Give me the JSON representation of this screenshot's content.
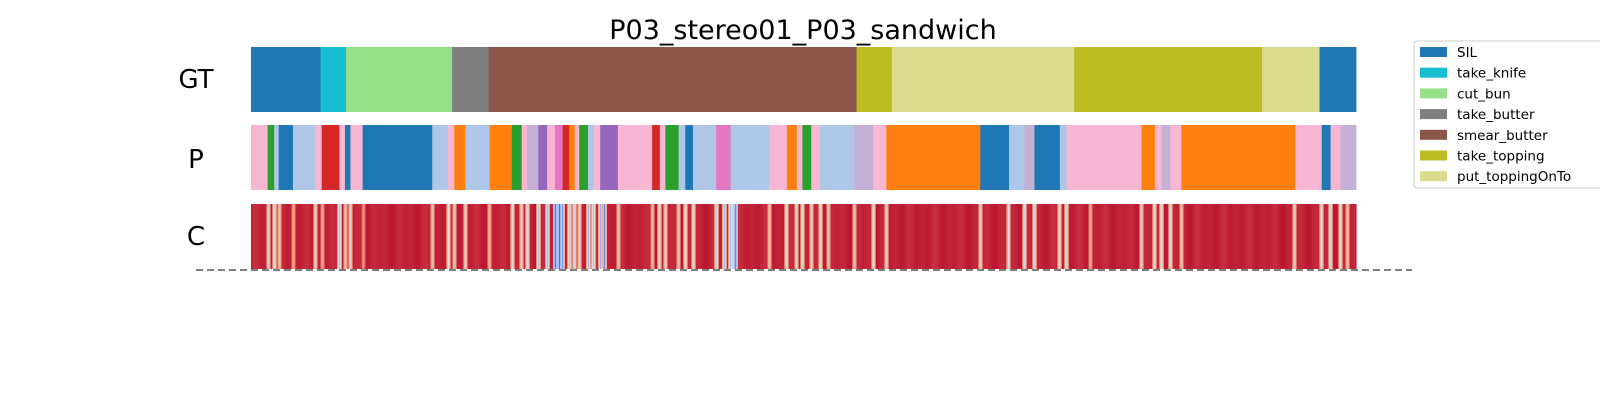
{
  "chart_data": {
    "type": "heatmap",
    "title": "P03_stereo01_P03_sandwich",
    "rows": [
      "GT",
      "P",
      "C"
    ],
    "x_range": [
      0,
      1
    ],
    "legend": {
      "placement": "right, clipped at top",
      "entries": [
        {
          "label": "SIL",
          "color": "#1f77b4"
        },
        {
          "label": "take_knife",
          "color": "#17becf"
        },
        {
          "label": "cut_bun",
          "color": "#98df8a"
        },
        {
          "label": "take_butter",
          "color": "#7f7f7f"
        },
        {
          "label": "smear_butter",
          "color": "#8c564b"
        },
        {
          "label": "take_topping",
          "color": "#bcbd22"
        },
        {
          "label": "put_toppingOnTo",
          "color": "#dbdb8d"
        }
      ]
    },
    "gt_segments": [
      {
        "start": 0.0,
        "end": 0.063,
        "label": "SIL",
        "color": "#1f77b4"
      },
      {
        "start": 0.063,
        "end": 0.086,
        "label": "take_knife",
        "color": "#17becf"
      },
      {
        "start": 0.086,
        "end": 0.182,
        "label": "cut_bun",
        "color": "#98df8a"
      },
      {
        "start": 0.182,
        "end": 0.215,
        "label": "take_butter",
        "color": "#7f7f7f"
      },
      {
        "start": 0.215,
        "end": 0.548,
        "label": "smear_butter",
        "color": "#8c564b"
      },
      {
        "start": 0.548,
        "end": 0.58,
        "label": "take_topping",
        "color": "#bcbd22"
      },
      {
        "start": 0.58,
        "end": 0.745,
        "label": "put_toppingOnTo",
        "color": "#dbdb8d"
      },
      {
        "start": 0.745,
        "end": 0.915,
        "label": "take_topping",
        "color": "#bcbd22"
      },
      {
        "start": 0.915,
        "end": 0.967,
        "label": "put_toppingOnTo",
        "color": "#dbdb8d"
      },
      {
        "start": 0.967,
        "end": 1.0,
        "label": "SIL",
        "color": "#1f77b4"
      }
    ],
    "pred_segments": [
      {
        "start": 0.0,
        "end": 0.015,
        "color": "#f7b6d2"
      },
      {
        "start": 0.015,
        "end": 0.021,
        "color": "#2ca02c"
      },
      {
        "start": 0.021,
        "end": 0.025,
        "color": "#aec7e8"
      },
      {
        "start": 0.025,
        "end": 0.038,
        "color": "#1f77b4"
      },
      {
        "start": 0.038,
        "end": 0.058,
        "color": "#aec7e8"
      },
      {
        "start": 0.058,
        "end": 0.064,
        "color": "#f7b6d2"
      },
      {
        "start": 0.064,
        "end": 0.08,
        "color": "#d62728"
      },
      {
        "start": 0.08,
        "end": 0.085,
        "color": "#f7b6d2"
      },
      {
        "start": 0.085,
        "end": 0.09,
        "color": "#1f77b4"
      },
      {
        "start": 0.09,
        "end": 0.101,
        "color": "#f7b6d2"
      },
      {
        "start": 0.101,
        "end": 0.164,
        "color": "#1f77b4"
      },
      {
        "start": 0.164,
        "end": 0.178,
        "color": "#aec7e8"
      },
      {
        "start": 0.178,
        "end": 0.184,
        "color": "#f7b6d2"
      },
      {
        "start": 0.184,
        "end": 0.194,
        "color": "#ff7f0e"
      },
      {
        "start": 0.194,
        "end": 0.216,
        "color": "#aec7e8"
      },
      {
        "start": 0.216,
        "end": 0.236,
        "color": "#ff7f0e"
      },
      {
        "start": 0.236,
        "end": 0.245,
        "color": "#2ca02c"
      },
      {
        "start": 0.245,
        "end": 0.25,
        "color": "#f7b6d2"
      },
      {
        "start": 0.25,
        "end": 0.26,
        "color": "#c5b0d5"
      },
      {
        "start": 0.26,
        "end": 0.268,
        "color": "#9467bd"
      },
      {
        "start": 0.268,
        "end": 0.275,
        "color": "#f7b6d2"
      },
      {
        "start": 0.275,
        "end": 0.282,
        "color": "#e377c2"
      },
      {
        "start": 0.282,
        "end": 0.288,
        "color": "#d62728"
      },
      {
        "start": 0.288,
        "end": 0.293,
        "color": "#ff7f0e"
      },
      {
        "start": 0.293,
        "end": 0.297,
        "color": "#f7b6d2"
      },
      {
        "start": 0.297,
        "end": 0.305,
        "color": "#2ca02c"
      },
      {
        "start": 0.305,
        "end": 0.31,
        "color": "#aec7e8"
      },
      {
        "start": 0.31,
        "end": 0.316,
        "color": "#f7b6d2"
      },
      {
        "start": 0.316,
        "end": 0.332,
        "color": "#9467bd"
      },
      {
        "start": 0.332,
        "end": 0.363,
        "color": "#f7b6d2"
      },
      {
        "start": 0.363,
        "end": 0.37,
        "color": "#d62728"
      },
      {
        "start": 0.37,
        "end": 0.375,
        "color": "#f7b6d2"
      },
      {
        "start": 0.375,
        "end": 0.387,
        "color": "#2ca02c"
      },
      {
        "start": 0.387,
        "end": 0.393,
        "color": "#aec7e8"
      },
      {
        "start": 0.393,
        "end": 0.4,
        "color": "#1f77b4"
      },
      {
        "start": 0.4,
        "end": 0.421,
        "color": "#aec7e8"
      },
      {
        "start": 0.421,
        "end": 0.434,
        "color": "#e377c2"
      },
      {
        "start": 0.434,
        "end": 0.469,
        "color": "#aec7e8"
      },
      {
        "start": 0.469,
        "end": 0.485,
        "color": "#f7b6d2"
      },
      {
        "start": 0.485,
        "end": 0.494,
        "color": "#ff7f0e"
      },
      {
        "start": 0.494,
        "end": 0.499,
        "color": "#f7b6d2"
      },
      {
        "start": 0.499,
        "end": 0.507,
        "color": "#2ca02c"
      },
      {
        "start": 0.507,
        "end": 0.515,
        "color": "#f7b6d2"
      },
      {
        "start": 0.515,
        "end": 0.523,
        "color": "#aec7e8"
      },
      {
        "start": 0.523,
        "end": 0.546,
        "color": "#aec7e8"
      },
      {
        "start": 0.546,
        "end": 0.563,
        "color": "#c5b0d5"
      },
      {
        "start": 0.563,
        "end": 0.575,
        "color": "#f7b6d2"
      },
      {
        "start": 0.575,
        "end": 0.66,
        "color": "#ff7f0e"
      },
      {
        "start": 0.66,
        "end": 0.686,
        "color": "#1f77b4"
      },
      {
        "start": 0.686,
        "end": 0.7,
        "color": "#aec7e8"
      },
      {
        "start": 0.7,
        "end": 0.709,
        "color": "#c5b0d5"
      },
      {
        "start": 0.709,
        "end": 0.732,
        "color": "#1f77b4"
      },
      {
        "start": 0.732,
        "end": 0.738,
        "color": "#aec7e8"
      },
      {
        "start": 0.738,
        "end": 0.806,
        "color": "#f7b6d2"
      },
      {
        "start": 0.806,
        "end": 0.818,
        "color": "#ff7f0e"
      },
      {
        "start": 0.818,
        "end": 0.824,
        "color": "#f7b6d2"
      },
      {
        "start": 0.824,
        "end": 0.832,
        "color": "#c5b0d5"
      },
      {
        "start": 0.832,
        "end": 0.842,
        "color": "#f7b6d2"
      },
      {
        "start": 0.842,
        "end": 0.945,
        "color": "#ff7f0e"
      },
      {
        "start": 0.945,
        "end": 0.969,
        "color": "#f7b6d2"
      },
      {
        "start": 0.969,
        "end": 0.977,
        "color": "#1f77b4"
      },
      {
        "start": 0.977,
        "end": 0.986,
        "color": "#f7b6d2"
      },
      {
        "start": 0.986,
        "end": 1.0,
        "color": "#c5b0d5"
      }
    ],
    "confidence": {
      "colormap": "coolwarm",
      "base": 0.97,
      "dips": [
        {
          "x": 0.015,
          "v": 0.55
        },
        {
          "x": 0.021,
          "v": 0.45
        },
        {
          "x": 0.025,
          "v": 0.6
        },
        {
          "x": 0.038,
          "v": 0.7
        },
        {
          "x": 0.058,
          "v": 0.55
        },
        {
          "x": 0.064,
          "v": 0.7
        },
        {
          "x": 0.08,
          "v": 0.35
        },
        {
          "x": 0.085,
          "v": 0.6
        },
        {
          "x": 0.09,
          "v": 0.55
        },
        {
          "x": 0.101,
          "v": 0.75
        },
        {
          "x": 0.164,
          "v": 0.6
        },
        {
          "x": 0.178,
          "v": 0.5
        },
        {
          "x": 0.184,
          "v": 0.6
        },
        {
          "x": 0.194,
          "v": 0.55
        },
        {
          "x": 0.216,
          "v": 0.65
        },
        {
          "x": 0.236,
          "v": 0.5
        },
        {
          "x": 0.245,
          "v": 0.55
        },
        {
          "x": 0.25,
          "v": 0.45
        },
        {
          "x": 0.26,
          "v": 0.4
        },
        {
          "x": 0.268,
          "v": 0.3
        },
        {
          "x": 0.275,
          "v": 0.1
        },
        {
          "x": 0.279,
          "v": 0.08
        },
        {
          "x": 0.282,
          "v": 0.2
        },
        {
          "x": 0.288,
          "v": 0.4
        },
        {
          "x": 0.293,
          "v": 0.45
        },
        {
          "x": 0.297,
          "v": 0.55
        },
        {
          "x": 0.305,
          "v": 0.3
        },
        {
          "x": 0.31,
          "v": 0.35
        },
        {
          "x": 0.316,
          "v": 0.25
        },
        {
          "x": 0.32,
          "v": 0.15
        },
        {
          "x": 0.332,
          "v": 0.6
        },
        {
          "x": 0.363,
          "v": 0.65
        },
        {
          "x": 0.37,
          "v": 0.5
        },
        {
          "x": 0.375,
          "v": 0.55
        },
        {
          "x": 0.387,
          "v": 0.6
        },
        {
          "x": 0.393,
          "v": 0.5
        },
        {
          "x": 0.4,
          "v": 0.5
        },
        {
          "x": 0.421,
          "v": 0.4
        },
        {
          "x": 0.428,
          "v": 0.3
        },
        {
          "x": 0.434,
          "v": 0.35
        },
        {
          "x": 0.436,
          "v": 0.45
        },
        {
          "x": 0.438,
          "v": 0.15
        },
        {
          "x": 0.469,
          "v": 0.6
        },
        {
          "x": 0.485,
          "v": 0.5
        },
        {
          "x": 0.494,
          "v": 0.55
        },
        {
          "x": 0.499,
          "v": 0.5
        },
        {
          "x": 0.507,
          "v": 0.55
        },
        {
          "x": 0.515,
          "v": 0.5
        },
        {
          "x": 0.523,
          "v": 0.6
        },
        {
          "x": 0.546,
          "v": 0.6
        },
        {
          "x": 0.563,
          "v": 0.5
        },
        {
          "x": 0.575,
          "v": 0.55
        },
        {
          "x": 0.66,
          "v": 0.55
        },
        {
          "x": 0.686,
          "v": 0.5
        },
        {
          "x": 0.7,
          "v": 0.45
        },
        {
          "x": 0.709,
          "v": 0.45
        },
        {
          "x": 0.732,
          "v": 0.5
        },
        {
          "x": 0.738,
          "v": 0.45
        },
        {
          "x": 0.76,
          "v": 0.7
        },
        {
          "x": 0.806,
          "v": 0.55
        },
        {
          "x": 0.818,
          "v": 0.5
        },
        {
          "x": 0.824,
          "v": 0.45
        },
        {
          "x": 0.832,
          "v": 0.5
        },
        {
          "x": 0.842,
          "v": 0.6
        },
        {
          "x": 0.945,
          "v": 0.55
        },
        {
          "x": 0.969,
          "v": 0.5
        },
        {
          "x": 0.977,
          "v": 0.45
        },
        {
          "x": 0.986,
          "v": 0.5
        },
        {
          "x": 0.993,
          "v": 0.6
        }
      ]
    }
  }
}
